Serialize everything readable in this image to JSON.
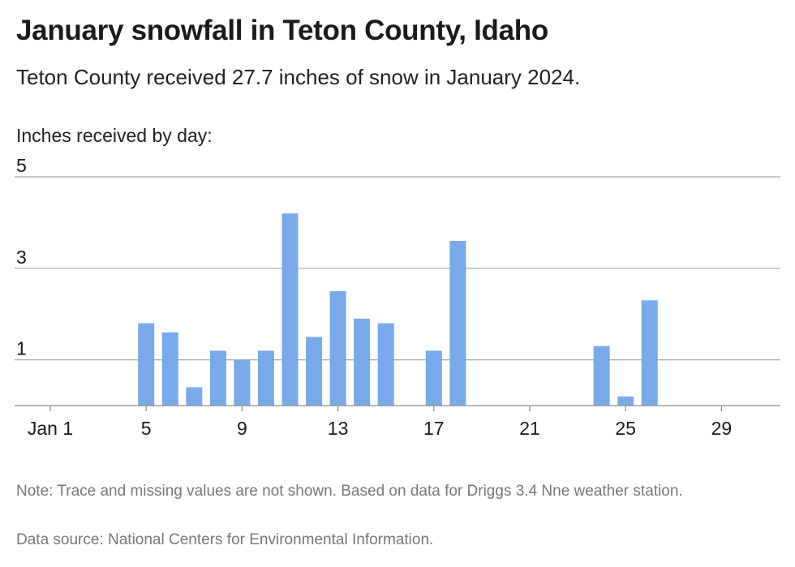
{
  "title": "January snowfall in Teton County, Idaho",
  "subtitle": "Teton County received 27.7 inches of snow in January 2024.",
  "note": "Note: Trace and missing values are not shown. Based on data for Driggs 3.4 Nne weather station.",
  "source": "Data source: National Centers for Environmental Information.",
  "chart_data": {
    "type": "bar",
    "title": "January snowfall in Teton County, Idaho",
    "subtitle": "Teton County received 27.7 inches of snow in January 2024.",
    "ylabel": "Inches received by day:",
    "xlabel": "",
    "ylim": [
      0,
      5
    ],
    "yticks": [
      1,
      3,
      5
    ],
    "xtick_labels": [
      {
        "day": 1,
        "label": "Jan 1"
      },
      {
        "day": 5,
        "label": "5"
      },
      {
        "day": 9,
        "label": "9"
      },
      {
        "day": 13,
        "label": "13"
      },
      {
        "day": 17,
        "label": "17"
      },
      {
        "day": 21,
        "label": "21"
      },
      {
        "day": 25,
        "label": "25"
      },
      {
        "day": 29,
        "label": "29"
      }
    ],
    "x": [
      1,
      2,
      3,
      4,
      5,
      6,
      7,
      8,
      9,
      10,
      11,
      12,
      13,
      14,
      15,
      16,
      17,
      18,
      19,
      20,
      21,
      22,
      23,
      24,
      25,
      26,
      27,
      28,
      29,
      30,
      31
    ],
    "values": [
      0,
      0,
      0,
      0,
      1.8,
      1.6,
      0.4,
      1.2,
      1.0,
      1.2,
      4.2,
      1.5,
      2.5,
      1.9,
      1.8,
      0,
      1.2,
      3.6,
      0,
      0,
      0,
      0,
      0,
      1.3,
      0.2,
      2.3,
      0,
      0,
      0,
      0,
      0
    ],
    "grid": true,
    "colors": {
      "bar": "#7aaaea",
      "grid": "#a6a6a6",
      "axis": "#8c8c8c"
    }
  }
}
